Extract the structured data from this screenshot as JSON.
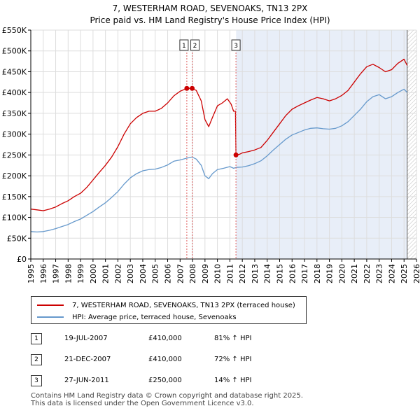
{
  "title": {
    "line1": "7, WESTERHAM ROAD, SEVENOAKS, TN13 2PX",
    "line2": "Price paid vs. HM Land Registry's House Price Index (HPI)"
  },
  "colors": {
    "property": "#cc0000",
    "hpi": "#6699cc",
    "shade": "#e8eef8",
    "future_hatch": "#bbbbbb",
    "grid": "#dddddd",
    "marker_line": "#e06060"
  },
  "chart_data": {
    "type": "line",
    "title": "7, WESTERHAM ROAD, SEVENOAKS, TN13 2PX - Price paid vs. HM Land Registry's House Price Index (HPI)",
    "xlim": [
      1995,
      2026
    ],
    "ylim": [
      0,
      550000
    ],
    "x_ticks": [
      1995,
      1996,
      1997,
      1998,
      1999,
      2000,
      2001,
      2002,
      2003,
      2004,
      2005,
      2006,
      2007,
      2008,
      2009,
      2010,
      2011,
      2012,
      2013,
      2014,
      2015,
      2016,
      2017,
      2018,
      2019,
      2020,
      2021,
      2022,
      2023,
      2024,
      2025,
      2026
    ],
    "y_ticks": [
      {
        "value": 0,
        "label": "£0"
      },
      {
        "value": 50000,
        "label": "£50K"
      },
      {
        "value": 100000,
        "label": "£100K"
      },
      {
        "value": 150000,
        "label": "£150K"
      },
      {
        "value": 200000,
        "label": "£200K"
      },
      {
        "value": 250000,
        "label": "£250K"
      },
      {
        "value": 300000,
        "label": "£300K"
      },
      {
        "value": 350000,
        "label": "£350K"
      },
      {
        "value": 400000,
        "label": "£400K"
      },
      {
        "value": 450000,
        "label": "£450K"
      },
      {
        "value": 500000,
        "label": "£500K"
      },
      {
        "value": 550000,
        "label": "£550K"
      }
    ],
    "shaded_range": [
      2011.5,
      2025.25
    ],
    "future_start": 2025.25,
    "series": [
      {
        "name": "7, WESTERHAM ROAD, SEVENOAKS, TN13 2PX (terraced house)",
        "color": "#cc0000",
        "points": [
          [
            1995,
            120000
          ],
          [
            1995.5,
            118000
          ],
          [
            1996,
            116000
          ],
          [
            1996.5,
            120000
          ],
          [
            1997,
            125000
          ],
          [
            1997.5,
            133000
          ],
          [
            1998,
            140000
          ],
          [
            1998.5,
            150000
          ],
          [
            1999,
            158000
          ],
          [
            1999.5,
            172000
          ],
          [
            2000,
            190000
          ],
          [
            2000.5,
            208000
          ],
          [
            2001,
            225000
          ],
          [
            2001.5,
            245000
          ],
          [
            2002,
            270000
          ],
          [
            2002.5,
            300000
          ],
          [
            2003,
            325000
          ],
          [
            2003.5,
            340000
          ],
          [
            2004,
            350000
          ],
          [
            2004.5,
            355000
          ],
          [
            2005,
            355000
          ],
          [
            2005.5,
            362000
          ],
          [
            2006,
            375000
          ],
          [
            2006.5,
            392000
          ],
          [
            2007,
            403000
          ],
          [
            2007.54,
            410000
          ],
          [
            2007.97,
            410000
          ],
          [
            2008.3,
            405000
          ],
          [
            2008.7,
            380000
          ],
          [
            2009,
            335000
          ],
          [
            2009.3,
            318000
          ],
          [
            2009.6,
            340000
          ],
          [
            2010,
            368000
          ],
          [
            2010.4,
            375000
          ],
          [
            2010.8,
            385000
          ],
          [
            2011.1,
            372000
          ],
          [
            2011.3,
            355000
          ],
          [
            2011.45,
            355000
          ],
          [
            2011.49,
            250000
          ],
          [
            2011.8,
            252000
          ],
          [
            2012,
            255000
          ],
          [
            2012.5,
            258000
          ],
          [
            2013,
            262000
          ],
          [
            2013.5,
            268000
          ],
          [
            2014,
            285000
          ],
          [
            2014.5,
            305000
          ],
          [
            2015,
            325000
          ],
          [
            2015.5,
            345000
          ],
          [
            2016,
            360000
          ],
          [
            2016.5,
            368000
          ],
          [
            2017,
            375000
          ],
          [
            2017.5,
            382000
          ],
          [
            2018,
            388000
          ],
          [
            2018.5,
            385000
          ],
          [
            2019,
            380000
          ],
          [
            2019.5,
            385000
          ],
          [
            2020,
            393000
          ],
          [
            2020.5,
            405000
          ],
          [
            2021,
            425000
          ],
          [
            2021.5,
            445000
          ],
          [
            2022,
            462000
          ],
          [
            2022.5,
            468000
          ],
          [
            2023,
            460000
          ],
          [
            2023.5,
            450000
          ],
          [
            2024,
            455000
          ],
          [
            2024.5,
            470000
          ],
          [
            2025,
            480000
          ],
          [
            2025.25,
            465000
          ]
        ]
      },
      {
        "name": "HPI: Average price, terraced house, Sevenoaks",
        "color": "#6699cc",
        "points": [
          [
            1995,
            66000
          ],
          [
            1995.5,
            65000
          ],
          [
            1996,
            66000
          ],
          [
            1996.5,
            69000
          ],
          [
            1997,
            73000
          ],
          [
            1997.5,
            78000
          ],
          [
            1998,
            83000
          ],
          [
            1998.5,
            90000
          ],
          [
            1999,
            96000
          ],
          [
            1999.5,
            105000
          ],
          [
            2000,
            114000
          ],
          [
            2000.5,
            125000
          ],
          [
            2001,
            135000
          ],
          [
            2001.5,
            148000
          ],
          [
            2002,
            162000
          ],
          [
            2002.5,
            180000
          ],
          [
            2003,
            195000
          ],
          [
            2003.5,
            205000
          ],
          [
            2004,
            212000
          ],
          [
            2004.5,
            215000
          ],
          [
            2005,
            216000
          ],
          [
            2005.5,
            220000
          ],
          [
            2006,
            226000
          ],
          [
            2006.5,
            235000
          ],
          [
            2007,
            238000
          ],
          [
            2007.5,
            242000
          ],
          [
            2007.97,
            245000
          ],
          [
            2008.3,
            240000
          ],
          [
            2008.7,
            225000
          ],
          [
            2009,
            200000
          ],
          [
            2009.3,
            193000
          ],
          [
            2009.6,
            205000
          ],
          [
            2010,
            215000
          ],
          [
            2010.5,
            218000
          ],
          [
            2011,
            222000
          ],
          [
            2011.3,
            218000
          ],
          [
            2011.5,
            220000
          ],
          [
            2012,
            221000
          ],
          [
            2012.5,
            224000
          ],
          [
            2013,
            229000
          ],
          [
            2013.5,
            236000
          ],
          [
            2014,
            248000
          ],
          [
            2014.5,
            262000
          ],
          [
            2015,
            275000
          ],
          [
            2015.5,
            288000
          ],
          [
            2016,
            298000
          ],
          [
            2016.5,
            304000
          ],
          [
            2017,
            310000
          ],
          [
            2017.5,
            314000
          ],
          [
            2018,
            315000
          ],
          [
            2018.5,
            313000
          ],
          [
            2019,
            312000
          ],
          [
            2019.5,
            314000
          ],
          [
            2020,
            320000
          ],
          [
            2020.5,
            330000
          ],
          [
            2021,
            345000
          ],
          [
            2021.5,
            360000
          ],
          [
            2022,
            378000
          ],
          [
            2022.5,
            390000
          ],
          [
            2023,
            395000
          ],
          [
            2023.5,
            385000
          ],
          [
            2024,
            390000
          ],
          [
            2024.5,
            400000
          ],
          [
            2025,
            408000
          ],
          [
            2025.25,
            400000
          ]
        ]
      }
    ],
    "markers": [
      {
        "label": "1",
        "x": 2007.54,
        "y": 410000
      },
      {
        "label": "2",
        "x": 2007.97,
        "y": 410000
      },
      {
        "label": "3",
        "x": 2011.49,
        "y": 250000
      }
    ]
  },
  "legend": {
    "items": [
      {
        "label": "7, WESTERHAM ROAD, SEVENOAKS, TN13 2PX (terraced house)",
        "color": "#cc0000"
      },
      {
        "label": "HPI: Average price, terraced house, Sevenoaks",
        "color": "#6699cc"
      }
    ]
  },
  "transactions": [
    {
      "num": "1",
      "date": "19-JUL-2007",
      "price": "£410,000",
      "hpi": "81% ↑ HPI"
    },
    {
      "num": "2",
      "date": "21-DEC-2007",
      "price": "£410,000",
      "hpi": "72% ↑ HPI"
    },
    {
      "num": "3",
      "date": "27-JUN-2011",
      "price": "£250,000",
      "hpi": "14% ↑ HPI"
    }
  ],
  "footer": {
    "line1": "Contains HM Land Registry data © Crown copyright and database right 2025.",
    "line2": "This data is licensed under the Open Government Licence v3.0."
  }
}
